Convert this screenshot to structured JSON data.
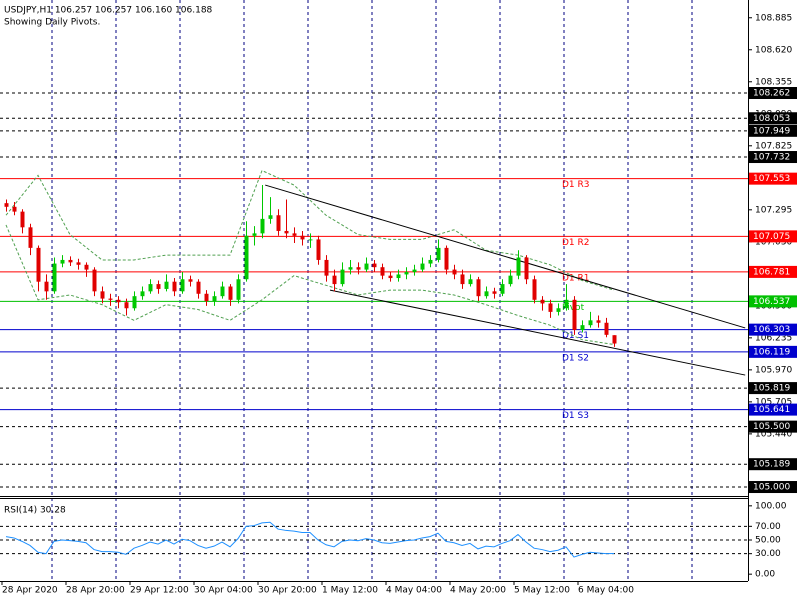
{
  "chart_data": {
    "type": "candlestick",
    "title": "USDJPY,H1  106.257 106.257 106.160 106.188",
    "subtitle": "Showing Daily Pivots.",
    "x_labels": [
      "28 Apr 2020",
      "28 Apr 20:00",
      "29 Apr 12:00",
      "30 Apr 04:00",
      "30 Apr 20:00",
      "1 May 12:00",
      "4 May 04:00",
      "4 May 20:00",
      "5 May 12:00",
      "6 May 04:00"
    ],
    "up_color": "#00c800",
    "down_color": "#e00000",
    "ylim": [
      104.934,
      109.032
    ],
    "yticks": [
      108.885,
      {
        "value": 108.62,
        "label": "108.620"
      },
      108.355,
      {
        "value": 108.09,
        "label": "108.090"
      },
      107.825,
      107.295,
      {
        "value": 107.03,
        "label": "107.030"
      },
      {
        "value": 106.5,
        "label": "106.500"
      },
      106.235,
      {
        "value": 105.97,
        "label": "105.970"
      },
      105.705,
      {
        "value": 105.44,
        "label": "105.440"
      }
    ],
    "candles": [
      [
        107.35,
        107.38,
        107.28,
        107.32
      ],
      [
        107.32,
        107.36,
        107.25,
        107.28
      ],
      [
        107.28,
        107.3,
        107.1,
        107.15
      ],
      [
        107.15,
        107.18,
        106.92,
        106.98
      ],
      [
        106.98,
        107.0,
        106.62,
        106.7
      ],
      [
        106.7,
        106.76,
        106.55,
        106.62
      ],
      [
        106.62,
        106.9,
        106.6,
        106.85
      ],
      [
        106.85,
        106.92,
        106.82,
        106.88
      ],
      [
        106.88,
        106.91,
        106.83,
        106.86
      ],
      [
        106.86,
        106.89,
        106.8,
        106.84
      ],
      [
        106.84,
        106.86,
        106.74,
        106.8
      ],
      [
        106.8,
        106.82,
        106.58,
        106.62
      ],
      [
        106.62,
        106.66,
        106.52,
        106.56
      ],
      [
        106.56,
        106.6,
        106.5,
        106.55
      ],
      [
        106.55,
        106.58,
        106.48,
        106.53
      ],
      [
        106.53,
        106.56,
        106.42,
        106.48
      ],
      [
        106.48,
        106.62,
        106.46,
        106.58
      ],
      [
        106.58,
        106.66,
        106.55,
        106.62
      ],
      [
        106.62,
        106.72,
        106.6,
        106.68
      ],
      [
        106.68,
        106.71,
        106.6,
        106.64
      ],
      [
        106.64,
        106.76,
        106.62,
        106.7
      ],
      [
        106.7,
        106.73,
        106.58,
        106.62
      ],
      [
        106.62,
        106.78,
        106.6,
        106.72
      ],
      [
        106.72,
        106.75,
        106.66,
        106.7
      ],
      [
        106.7,
        106.72,
        106.56,
        106.6
      ],
      [
        106.6,
        106.63,
        106.5,
        106.54
      ],
      [
        106.54,
        106.62,
        106.5,
        106.58
      ],
      [
        106.58,
        106.7,
        106.56,
        106.66
      ],
      [
        106.66,
        106.68,
        106.5,
        106.55
      ],
      [
        106.55,
        106.76,
        106.52,
        106.72
      ],
      [
        106.72,
        107.2,
        106.7,
        107.08
      ],
      [
        107.08,
        107.16,
        107.0,
        107.1
      ],
      [
        107.1,
        107.5,
        107.06,
        107.22
      ],
      [
        107.22,
        107.4,
        107.18,
        107.25
      ],
      [
        107.25,
        107.3,
        107.08,
        107.12
      ],
      [
        107.12,
        107.38,
        107.06,
        107.1
      ],
      [
        107.1,
        107.15,
        107.02,
        107.08
      ],
      [
        107.08,
        107.12,
        107.0,
        107.05
      ],
      [
        107.05,
        107.1,
        106.98,
        107.05
      ],
      [
        107.05,
        107.08,
        106.84,
        106.88
      ],
      [
        106.88,
        106.92,
        106.7,
        106.75
      ],
      [
        106.75,
        106.8,
        106.62,
        106.68
      ],
      [
        106.68,
        106.86,
        106.66,
        106.8
      ],
      [
        106.8,
        106.88,
        106.76,
        106.82
      ],
      [
        106.82,
        106.86,
        106.76,
        106.8
      ],
      [
        106.8,
        106.9,
        106.78,
        106.85
      ],
      [
        106.85,
        106.88,
        106.78,
        106.82
      ],
      [
        106.82,
        106.85,
        106.72,
        106.75
      ],
      [
        106.75,
        106.78,
        106.7,
        106.73
      ],
      [
        106.73,
        106.8,
        106.7,
        106.76
      ],
      [
        106.76,
        106.82,
        106.72,
        106.78
      ],
      [
        106.78,
        106.84,
        106.75,
        106.8
      ],
      [
        106.8,
        106.9,
        106.78,
        106.85
      ],
      [
        106.85,
        106.92,
        106.82,
        106.88
      ],
      [
        106.88,
        107.05,
        106.86,
        106.98
      ],
      [
        106.98,
        107.0,
        106.76,
        106.8
      ],
      [
        106.8,
        106.84,
        106.72,
        106.76
      ],
      [
        106.76,
        106.8,
        106.64,
        106.68
      ],
      [
        106.68,
        106.76,
        106.66,
        106.72
      ],
      [
        106.72,
        106.74,
        106.54,
        106.58
      ],
      [
        106.58,
        106.66,
        106.56,
        106.62
      ],
      [
        106.62,
        106.65,
        106.56,
        106.6
      ],
      [
        106.6,
        106.72,
        106.58,
        106.68
      ],
      [
        106.68,
        106.8,
        106.66,
        106.75
      ],
      [
        106.75,
        106.96,
        106.72,
        106.9
      ],
      [
        106.9,
        106.92,
        106.68,
        106.72
      ],
      [
        106.72,
        106.75,
        106.52,
        106.55
      ],
      [
        106.55,
        106.58,
        106.46,
        106.52
      ],
      [
        106.52,
        106.55,
        106.4,
        106.45
      ],
      [
        106.45,
        106.52,
        106.42,
        106.48
      ],
      [
        106.48,
        106.68,
        106.46,
        106.55
      ],
      [
        106.55,
        106.58,
        106.26,
        106.3
      ],
      [
        106.3,
        106.38,
        106.28,
        106.34
      ],
      [
        106.34,
        106.45,
        106.32,
        106.38
      ],
      [
        106.38,
        106.42,
        106.32,
        106.36
      ],
      [
        106.36,
        106.4,
        106.24,
        106.26
      ],
      [
        106.257,
        106.257,
        106.16,
        106.188
      ]
    ],
    "bands": {
      "color": "#50a050",
      "index": [
        0,
        4,
        8,
        12,
        16,
        20,
        24,
        28,
        32,
        36,
        40,
        44,
        48,
        52,
        56,
        60,
        64,
        68,
        72,
        76
      ],
      "upper": [
        107.25,
        107.58,
        107.09,
        106.88,
        106.88,
        106.92,
        106.92,
        106.92,
        107.62,
        107.5,
        107.25,
        107.09,
        107.05,
        107.05,
        107.13,
        106.96,
        106.92,
        106.84,
        106.71,
        106.63
      ],
      "lower": [
        107.17,
        106.55,
        106.59,
        106.51,
        106.38,
        106.51,
        106.47,
        106.38,
        106.55,
        106.75,
        106.67,
        106.59,
        106.63,
        106.63,
        106.59,
        106.51,
        106.42,
        106.34,
        106.22,
        106.18
      ]
    },
    "trendlines": [
      {
        "x": [
          32.4,
          92.4
        ],
        "y": [
          107.5,
          106.317
        ]
      },
      {
        "x": [
          40.5,
          92.4
        ],
        "y": [
          106.63,
          105.927
        ]
      }
    ],
    "pivots": [
      {
        "name": "D1 R3",
        "value": 107.553,
        "color": "#ff0000"
      },
      {
        "name": "D1 R2",
        "value": 107.075,
        "color": "#ff0000"
      },
      {
        "name": "D1 R1",
        "value": 106.781,
        "color": "#ff0000"
      },
      {
        "name": "Pivot",
        "value": 106.537,
        "color": "#00c000"
      },
      {
        "name": "D1 S1",
        "value": 106.303,
        "color": "#0000cd"
      },
      {
        "name": "D1 S2",
        "value": 106.119,
        "color": "#0000cd"
      },
      {
        "name": "D1 S3",
        "value": 105.641,
        "color": "#0000cd"
      }
    ],
    "levels": [
      {
        "value": 108.262
      },
      {
        "value": 108.053
      },
      {
        "value": 107.949
      },
      {
        "value": 107.732
      },
      {
        "value": 105.819
      },
      {
        "value": 105.5,
        "label": "105.500"
      },
      {
        "value": 105.189
      },
      {
        "value": 105.0,
        "label": "105.000"
      }
    ],
    "rsi": {
      "label": "RSI(14) 30.28",
      "color": "#1e90ff",
      "ylim": [
        -10,
        110
      ],
      "yticks": [
        {
          "value": 100,
          "label": "100.00"
        },
        {
          "value": 70,
          "label": "70.00"
        },
        {
          "value": 50,
          "label": "50.00"
        },
        {
          "value": 30,
          "label": "30.00"
        },
        {
          "value": 0,
          "label": "0.00"
        }
      ],
      "levels": [
        70,
        50,
        30
      ],
      "values": [
        55,
        53,
        48,
        42,
        32,
        30,
        48,
        50,
        49,
        48,
        46,
        36,
        33,
        33,
        32,
        29,
        38,
        42,
        47,
        44,
        50,
        44,
        51,
        49,
        42,
        38,
        41,
        47,
        40,
        52,
        70,
        71,
        75,
        76,
        66,
        64,
        63,
        61,
        61,
        50,
        43,
        40,
        48,
        50,
        49,
        52,
        50,
        46,
        45,
        47,
        49,
        50,
        53,
        55,
        60,
        48,
        46,
        42,
        45,
        37,
        41,
        40,
        45,
        49,
        58,
        47,
        38,
        36,
        33,
        35,
        40,
        25,
        29,
        32,
        31,
        30,
        30.28
      ]
    }
  }
}
